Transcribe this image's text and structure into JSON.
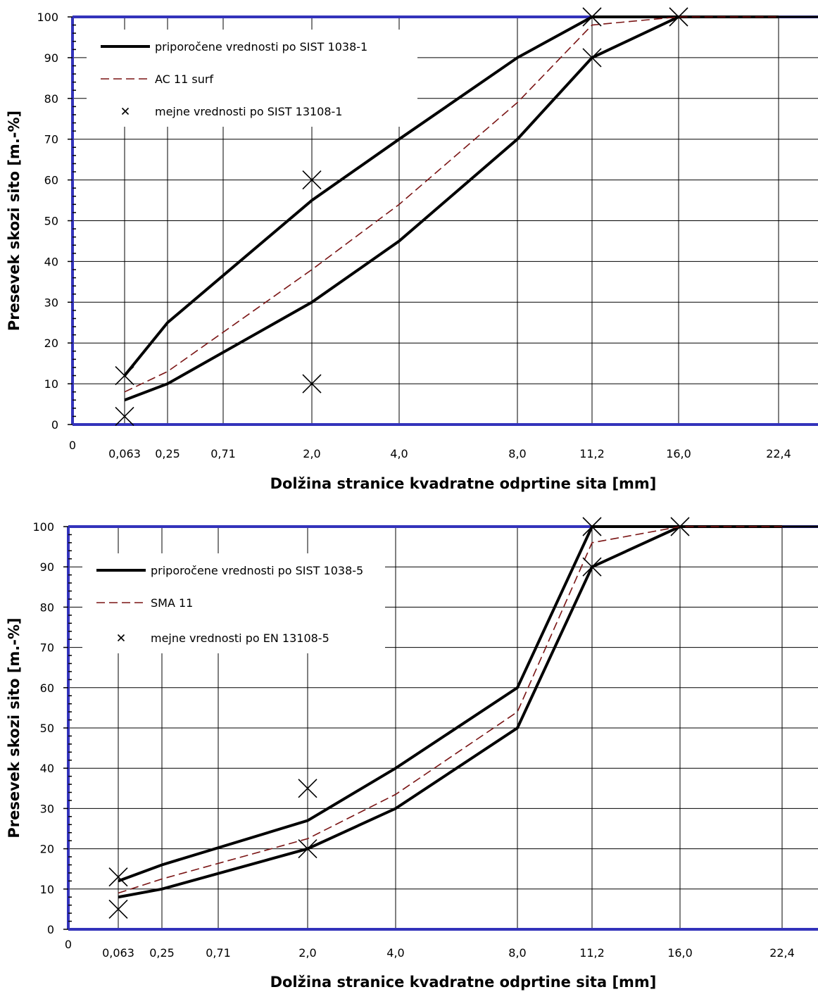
{
  "colors": {
    "frame": "#3333bb",
    "envelope": "#000000",
    "mix": "#7a1414",
    "grid": "#000000",
    "background": "#ffffff"
  },
  "chart_data": [
    {
      "type": "line",
      "xlabel": "Dolžina stranice kvadratne odprtine sita [mm]",
      "ylabel": "Presevek skozi sito [m.-%]",
      "ylim": [
        0,
        100
      ],
      "yticks": [
        0,
        10,
        20,
        30,
        40,
        50,
        60,
        70,
        80,
        90,
        100
      ],
      "x_origin_label": "0",
      "x_sieves": [
        "0,063",
        "0,25",
        "0,71",
        "2,0",
        "4,0",
        "8,0",
        "11,2",
        "16,0",
        "22,4"
      ],
      "grid": true,
      "legend_position": "top-left",
      "series": [
        {
          "name": "priporočene vrednosti po SIST 1038-1",
          "style": "solid",
          "envelope_lower": [
            6,
            10,
            null,
            30,
            45,
            70,
            90,
            100,
            100
          ],
          "envelope_upper": [
            12,
            25,
            null,
            55,
            70,
            90,
            100,
            100,
            100
          ]
        },
        {
          "name": "AC 11 surf",
          "style": "dashed",
          "values": [
            8,
            13,
            null,
            38,
            54,
            79,
            98,
            100,
            100
          ]
        },
        {
          "name": "mejne vrednosti po SIST 13108-1",
          "style": "marker",
          "points": [
            {
              "x": "0,063",
              "y": 12
            },
            {
              "x": "0,063",
              "y": 2
            },
            {
              "x": "2,0",
              "y": 60
            },
            {
              "x": "2,0",
              "y": 10
            },
            {
              "x": "11,2",
              "y": 100
            },
            {
              "x": "11,2",
              "y": 90
            },
            {
              "x": "16,0",
              "y": 100
            }
          ]
        }
      ]
    },
    {
      "type": "line",
      "xlabel": "Dolžina stranice kvadratne odprtine sita [mm]",
      "ylabel": "Presevek skozi sito [m.-%]",
      "ylim": [
        0,
        100
      ],
      "yticks": [
        0,
        10,
        20,
        30,
        40,
        50,
        60,
        70,
        80,
        90,
        100
      ],
      "x_origin_label": "0",
      "x_sieves": [
        "0,063",
        "0,25",
        "0,71",
        "2,0",
        "4,0",
        "8,0",
        "11,2",
        "16,0",
        "22,4"
      ],
      "grid": true,
      "legend_position": "top-left",
      "series": [
        {
          "name": "priporočene vrednosti po SIST 1038-5",
          "style": "solid",
          "envelope_lower": [
            8,
            10,
            null,
            20,
            30,
            50,
            90,
            100,
            100
          ],
          "envelope_upper": [
            12,
            16,
            null,
            27,
            40,
            60,
            100,
            100,
            100
          ]
        },
        {
          "name": "SMA 11",
          "style": "dashed",
          "values": [
            9,
            12.5,
            null,
            22.5,
            33.5,
            54,
            96,
            100,
            100
          ]
        },
        {
          "name": "mejne vrednosti po EN 13108-5",
          "style": "marker",
          "points": [
            {
              "x": "0,063",
              "y": 13
            },
            {
              "x": "0,063",
              "y": 5
            },
            {
              "x": "2,0",
              "y": 35
            },
            {
              "x": "2,0",
              "y": 20
            },
            {
              "x": "11,2",
              "y": 100
            },
            {
              "x": "11,2",
              "y": 90
            },
            {
              "x": "16,0",
              "y": 100
            }
          ]
        }
      ]
    }
  ]
}
